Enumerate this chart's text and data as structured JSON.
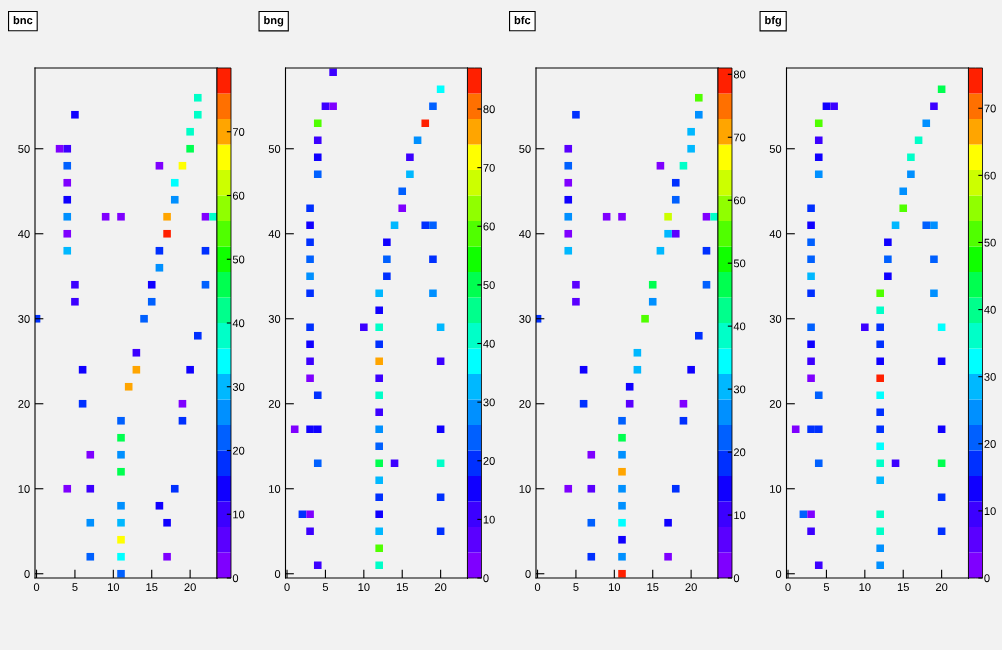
{
  "chart_data": [
    {
      "type": "scatter",
      "title": "bnc",
      "marker": "square",
      "xlim": [
        -0.2,
        23.5
      ],
      "ylim": [
        -0.5,
        59.5
      ],
      "xticks": [
        0,
        5,
        10,
        15,
        20
      ],
      "yticks": [
        0,
        10,
        20,
        30,
        40,
        50
      ],
      "clim": [
        0,
        80
      ],
      "cticks": [
        0,
        10,
        20,
        30,
        40,
        50,
        60,
        70
      ],
      "x": [
        21,
        5,
        21,
        20,
        3,
        4,
        20,
        4,
        16,
        19,
        4,
        18,
        4,
        18,
        4,
        9,
        11,
        17,
        22,
        23,
        4,
        17,
        4,
        16,
        22,
        16,
        5,
        15,
        22,
        5,
        15,
        0,
        14,
        21,
        13,
        6,
        13,
        20,
        12,
        6,
        19,
        11,
        19,
        11,
        7,
        11,
        11,
        4,
        7,
        18,
        11,
        16,
        7,
        11,
        17,
        11,
        7,
        11,
        17,
        11
      ],
      "values": [
        56,
        54,
        54,
        52,
        50,
        50,
        50,
        48,
        48,
        48,
        46,
        46,
        44,
        44,
        42,
        42,
        42,
        42,
        42,
        42,
        40,
        40,
        38,
        38,
        38,
        36,
        34,
        34,
        34,
        32,
        32,
        30,
        30,
        28,
        26,
        24,
        24,
        24,
        22,
        20,
        20,
        18,
        18,
        16,
        14,
        14,
        12,
        10,
        10,
        10,
        8,
        8,
        6,
        6,
        6,
        4,
        2,
        2,
        2,
        0
      ],
      "cvalues": [
        38,
        13,
        38,
        38,
        2,
        8,
        46,
        21,
        2,
        64,
        2,
        34,
        13,
        25,
        25,
        2,
        2,
        70,
        2,
        38,
        2,
        78,
        29,
        17,
        17,
        25,
        8,
        13,
        21,
        8,
        21,
        17,
        21,
        17,
        8,
        13,
        70,
        13,
        70,
        17,
        2,
        21,
        17,
        46,
        2,
        25,
        46,
        2,
        8,
        17,
        25,
        13,
        25,
        29,
        13,
        64,
        21,
        34,
        2,
        21
      ]
    },
    {
      "type": "scatter",
      "title": "bng",
      "marker": "square",
      "xlim": [
        -0.2,
        23.5
      ],
      "ylim": [
        -0.5,
        59.5
      ],
      "xticks": [
        0,
        5,
        10,
        15,
        20
      ],
      "yticks": [
        0,
        10,
        20,
        30,
        40,
        50
      ],
      "clim": [
        0,
        87
      ],
      "cticks": [
        0,
        10,
        20,
        30,
        40,
        50,
        60,
        70,
        80
      ],
      "x": [
        6,
        20,
        5,
        6,
        19,
        4,
        18,
        4,
        17,
        4,
        16,
        4,
        16,
        15,
        3,
        15,
        3,
        14,
        18,
        19,
        3,
        13,
        3,
        13,
        19,
        3,
        13,
        3,
        12,
        19,
        12,
        3,
        10,
        12,
        20,
        3,
        12,
        3,
        12,
        20,
        3,
        12,
        4,
        12,
        12,
        1,
        3,
        4,
        12,
        20,
        12,
        4,
        12,
        14,
        20,
        12,
        12,
        20,
        2,
        3,
        12,
        3,
        12,
        20,
        12,
        4,
        12
      ],
      "values": [
        59,
        57,
        55,
        55,
        55,
        53,
        53,
        51,
        51,
        49,
        49,
        47,
        47,
        45,
        43,
        43,
        41,
        41,
        41,
        41,
        39,
        39,
        37,
        37,
        37,
        35,
        35,
        33,
        33,
        33,
        31,
        29,
        29,
        29,
        29,
        27,
        27,
        25,
        25,
        25,
        23,
        23,
        21,
        21,
        19,
        17,
        17,
        17,
        17,
        17,
        15,
        13,
        13,
        13,
        13,
        11,
        9,
        9,
        7,
        7,
        7,
        5,
        5,
        5,
        3,
        1,
        1
      ],
      "cvalues": [
        9,
        37,
        9,
        3,
        23,
        57,
        84,
        9,
        27,
        14,
        9,
        23,
        31,
        23,
        18,
        3,
        14,
        31,
        18,
        23,
        18,
        14,
        23,
        23,
        18,
        27,
        18,
        18,
        31,
        27,
        14,
        18,
        9,
        42,
        31,
        14,
        18,
        9,
        76,
        9,
        3,
        9,
        18,
        42,
        9,
        3,
        14,
        14,
        27,
        14,
        23,
        23,
        50,
        9,
        42,
        31,
        18,
        18,
        18,
        3,
        14,
        9,
        31,
        18,
        57,
        9,
        42
      ]
    },
    {
      "type": "scatter",
      "title": "bfc",
      "marker": "square",
      "xlim": [
        -0.2,
        23.5
      ],
      "ylim": [
        -0.5,
        59.5
      ],
      "xticks": [
        0,
        5,
        10,
        15,
        20
      ],
      "yticks": [
        0,
        10,
        20,
        30,
        40,
        50
      ],
      "clim": [
        0,
        81
      ],
      "cticks": [
        0,
        10,
        20,
        30,
        40,
        50,
        60,
        70,
        80
      ],
      "x": [
        21,
        5,
        21,
        20,
        4,
        20,
        4,
        16,
        19,
        4,
        18,
        4,
        18,
        4,
        9,
        11,
        17,
        22,
        23,
        4,
        17,
        18,
        4,
        16,
        22,
        5,
        15,
        22,
        5,
        15,
        0,
        14,
        21,
        13,
        6,
        13,
        20,
        12,
        6,
        12,
        19,
        11,
        19,
        11,
        7,
        11,
        11,
        4,
        7,
        11,
        18,
        11,
        7,
        11,
        17,
        11,
        7,
        11,
        17,
        11
      ],
      "values": [
        56,
        54,
        54,
        52,
        50,
        50,
        48,
        48,
        48,
        46,
        46,
        44,
        44,
        42,
        42,
        42,
        42,
        42,
        42,
        40,
        40,
        40,
        38,
        38,
        38,
        34,
        34,
        34,
        32,
        32,
        30,
        30,
        28,
        26,
        24,
        24,
        24,
        22,
        20,
        20,
        20,
        18,
        18,
        16,
        14,
        14,
        12,
        10,
        10,
        10,
        10,
        8,
        6,
        6,
        6,
        4,
        2,
        2,
        2,
        0
      ],
      "cvalues": [
        53,
        17,
        25,
        29,
        8,
        29,
        21,
        2,
        39,
        2,
        17,
        13,
        21,
        25,
        2,
        2,
        61,
        2,
        39,
        2,
        29,
        8,
        29,
        29,
        17,
        8,
        46,
        21,
        8,
        25,
        17,
        53,
        17,
        29,
        13,
        29,
        13,
        13,
        17,
        8,
        2,
        21,
        17,
        46,
        2,
        25,
        70,
        2,
        8,
        25,
        17,
        25,
        21,
        34,
        13,
        13,
        17,
        25,
        2,
        79
      ]
    },
    {
      "type": "scatter",
      "title": "bfg",
      "marker": "square",
      "xlim": [
        -0.2,
        23.5
      ],
      "ylim": [
        -0.5,
        59.5
      ],
      "xticks": [
        0,
        5,
        10,
        15,
        20
      ],
      "yticks": [
        0,
        10,
        20,
        30,
        40,
        50
      ],
      "clim": [
        0,
        76
      ],
      "cticks": [
        0,
        10,
        20,
        30,
        40,
        50,
        60,
        70
      ],
      "x": [
        20,
        5,
        6,
        19,
        4,
        18,
        4,
        17,
        4,
        16,
        4,
        16,
        15,
        3,
        15,
        3,
        14,
        18,
        19,
        3,
        13,
        3,
        13,
        19,
        3,
        13,
        3,
        12,
        19,
        12,
        3,
        10,
        12,
        20,
        3,
        12,
        3,
        12,
        20,
        3,
        12,
        4,
        12,
        12,
        1,
        3,
        4,
        12,
        20,
        12,
        4,
        12,
        14,
        20,
        12,
        20,
        2,
        3,
        12,
        3,
        12,
        20,
        12,
        4,
        12
      ],
      "values": [
        57,
        55,
        55,
        55,
        53,
        53,
        51,
        51,
        49,
        49,
        47,
        47,
        45,
        43,
        43,
        41,
        41,
        41,
        41,
        39,
        39,
        37,
        37,
        37,
        35,
        35,
        33,
        33,
        33,
        31,
        29,
        29,
        29,
        29,
        27,
        27,
        25,
        25,
        25,
        23,
        23,
        21,
        21,
        19,
        17,
        17,
        17,
        17,
        17,
        15,
        13,
        13,
        13,
        13,
        11,
        9,
        7,
        7,
        7,
        5,
        5,
        5,
        3,
        1,
        1
      ],
      "cvalues": [
        43,
        12,
        8,
        8,
        50,
        24,
        8,
        36,
        12,
        36,
        24,
        24,
        24,
        16,
        50,
        12,
        27,
        20,
        24,
        20,
        12,
        20,
        20,
        20,
        27,
        12,
        16,
        50,
        24,
        36,
        20,
        8,
        16,
        32,
        12,
        16,
        8,
        12,
        12,
        2,
        74,
        20,
        32,
        16,
        2,
        16,
        16,
        16,
        12,
        32,
        20,
        36,
        8,
        43,
        27,
        16,
        20,
        2,
        36,
        8,
        36,
        16,
        24,
        8,
        24
      ]
    }
  ]
}
